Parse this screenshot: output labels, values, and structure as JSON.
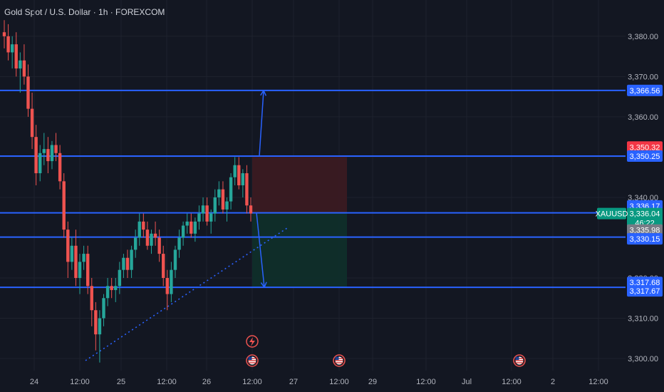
{
  "header": {
    "title": "Gold Spot / U.S. Dollar · 1h · FOREXCOM"
  },
  "colors": {
    "background": "#131722",
    "up": "#26a69a",
    "down": "#ef5350",
    "line": "#2962ff",
    "stop_zone": "#3a1a22",
    "target_zone": "#0f2e2a",
    "trend": "#2962ff"
  },
  "chart_data": {
    "type": "candlestick",
    "symbol": "XAUUSD",
    "ylim": [
      3297,
      3389
    ],
    "y_ticks": [
      "3,300.00",
      "3,310.00",
      "3,320.00",
      "3,330.00",
      "3,340.00",
      "3,350.00",
      "3,360.00",
      "3,370.00",
      "3,380.00"
    ],
    "y_tick_values": [
      3300,
      3310,
      3320,
      3330,
      3340,
      3350,
      3360,
      3370,
      3380
    ],
    "x_ticks": [
      "24",
      "12:00",
      "25",
      "12:00",
      "26",
      "12:00",
      "27",
      "12:00",
      "29",
      "12:00",
      "Jul",
      "12:00",
      "2",
      "12:00"
    ],
    "horizontal_lines": [
      3366.56,
      3350.25,
      3336.17,
      3330.15,
      3317.68
    ],
    "price_tags": [
      {
        "label": "3,366.56",
        "value": 3366.56,
        "color": "#2962ff"
      },
      {
        "label": "3,350.32",
        "value": 3352.5,
        "color": "#f23645"
      },
      {
        "label": "3,350.25",
        "value": 3350.25,
        "color": "#2962ff"
      },
      {
        "label": "3,336.17",
        "value": 3337.9,
        "color": "#2962ff"
      },
      {
        "label": "3,336.04",
        "value": 3336.0,
        "color": "#089981",
        "sub": "46:22"
      },
      {
        "label": "3,335.98",
        "value": 3331.9,
        "color": "#787b86"
      },
      {
        "label": "3,330.15",
        "value": 3329.7,
        "color": "#2962ff"
      },
      {
        "label": "3,317.68",
        "value": 3318.9,
        "color": "#2962ff"
      },
      {
        "label": "3,317.67",
        "value": 3316.8,
        "color": "#2962ff"
      }
    ],
    "symbol_tag": {
      "label": "XAUUSD",
      "value": 3336.0
    },
    "countdown": "46:22",
    "position": {
      "entry": 3336.17,
      "stop": 3350.25,
      "target": 3317.68
    },
    "candles": [
      [
        3381,
        3384,
        3377,
        3380
      ],
      [
        3380,
        3383,
        3374,
        3376
      ],
      [
        3376,
        3380,
        3372,
        3378
      ],
      [
        3378,
        3381,
        3370,
        3372
      ],
      [
        3372,
        3376,
        3366,
        3374
      ],
      [
        3374,
        3378,
        3368,
        3370
      ],
      [
        3370,
        3373,
        3360,
        3362
      ],
      [
        3362,
        3366,
        3352,
        3355
      ],
      [
        3355,
        3358,
        3343,
        3346
      ],
      [
        3346,
        3353,
        3344,
        3351
      ],
      [
        3351,
        3356,
        3348,
        3352
      ],
      [
        3352,
        3355,
        3346,
        3349
      ],
      [
        3349,
        3354,
        3347,
        3353
      ],
      [
        3353,
        3356,
        3349,
        3351
      ],
      [
        3351,
        3353,
        3342,
        3344
      ],
      [
        3344,
        3346,
        3330,
        3332
      ],
      [
        3332,
        3334,
        3320,
        3324
      ],
      [
        3324,
        3330,
        3322,
        3328
      ],
      [
        3328,
        3332,
        3318,
        3320
      ],
      [
        3320,
        3326,
        3316,
        3324
      ],
      [
        3324,
        3328,
        3322,
        3326
      ],
      [
        3326,
        3328,
        3316,
        3318
      ],
      [
        3318,
        3320,
        3308,
        3312
      ],
      [
        3312,
        3314,
        3302,
        3306
      ],
      [
        3306,
        3312,
        3299,
        3310
      ],
      [
        3310,
        3316,
        3308,
        3315
      ],
      [
        3315,
        3320,
        3313,
        3318
      ],
      [
        3318,
        3320,
        3315,
        3317
      ],
      [
        3317,
        3320,
        3314,
        3318
      ],
      [
        3318,
        3324,
        3316,
        3322
      ],
      [
        3322,
        3326,
        3320,
        3325
      ],
      [
        3325,
        3327,
        3320,
        3322
      ],
      [
        3322,
        3328,
        3320,
        3327
      ],
      [
        3327,
        3332,
        3325,
        3330
      ],
      [
        3330,
        3336,
        3328,
        3334
      ],
      [
        3334,
        3336,
        3330,
        3332
      ],
      [
        3332,
        3334,
        3327,
        3328
      ],
      [
        3328,
        3332,
        3326,
        3331
      ],
      [
        3331,
        3334,
        3328,
        3330
      ],
      [
        3330,
        3332,
        3324,
        3326
      ],
      [
        3326,
        3328,
        3318,
        3320
      ],
      [
        3320,
        3322,
        3312,
        3316
      ],
      [
        3316,
        3324,
        3314,
        3322
      ],
      [
        3322,
        3328,
        3320,
        3327
      ],
      [
        3327,
        3332,
        3325,
        3330
      ],
      [
        3330,
        3334,
        3328,
        3333
      ],
      [
        3333,
        3336,
        3331,
        3334
      ],
      [
        3334,
        3336,
        3330,
        3331
      ],
      [
        3331,
        3335,
        3329,
        3334
      ],
      [
        3334,
        3338,
        3332,
        3336
      ],
      [
        3336,
        3340,
        3334,
        3338
      ],
      [
        3338,
        3340,
        3333,
        3334
      ],
      [
        3334,
        3337,
        3331,
        3336
      ],
      [
        3336,
        3342,
        3334,
        3340
      ],
      [
        3340,
        3344,
        3338,
        3342
      ],
      [
        3342,
        3344,
        3336,
        3337
      ],
      [
        3337,
        3340,
        3334,
        3339
      ],
      [
        3339,
        3346,
        3337,
        3345
      ],
      [
        3345,
        3350,
        3343,
        3348
      ],
      [
        3348,
        3350,
        3342,
        3343
      ],
      [
        3343,
        3347,
        3340,
        3346
      ],
      [
        3346,
        3348,
        3336,
        3338
      ],
      [
        3338,
        3340,
        3334,
        3336
      ]
    ]
  }
}
